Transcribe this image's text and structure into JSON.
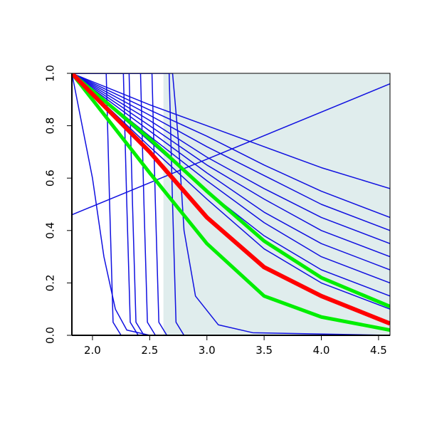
{
  "chart_data": {
    "type": "line",
    "xlim": [
      1.82,
      4.6
    ],
    "ylim": [
      0,
      1
    ],
    "xticks": [
      {
        "value": 2,
        "label": "2.0"
      },
      2.5,
      {
        "value": 3,
        "label": "3.0"
      },
      3.5,
      {
        "value": 4,
        "label": "4.0"
      },
      4.5
    ],
    "yticks": [
      {
        "value": 0,
        "label": "0.0"
      },
      0.2,
      0.4,
      0.6,
      0.8,
      {
        "value": 1,
        "label": "1.0"
      }
    ],
    "shaded_region": {
      "xlim": [
        2.62,
        4.6
      ],
      "color": "#e0eded"
    },
    "series": [
      {
        "color": "#1010e0",
        "line_width": 1.5,
        "x": [
          1.82,
          4.6
        ],
        "values": [
          0.46,
          0.96
        ]
      },
      {
        "color": "#1010e0",
        "line_width": 1.5,
        "x": [
          1.82,
          2.5,
          3.0,
          3.5,
          4.0,
          4.6
        ],
        "values": [
          1,
          0.88,
          0.8,
          0.72,
          0.64,
          0.56
        ]
      },
      {
        "color": "#1010e0",
        "line_width": 1.5,
        "x": [
          1.82,
          2.5,
          3.0,
          3.5,
          4.0,
          4.6
        ],
        "values": [
          1,
          0.86,
          0.76,
          0.65,
          0.55,
          0.45
        ]
      },
      {
        "color": "#1010e0",
        "line_width": 1.5,
        "x": [
          1.82,
          2.5,
          3.0,
          3.5,
          4.0,
          4.6
        ],
        "values": [
          1,
          0.84,
          0.72,
          0.61,
          0.5,
          0.4
        ]
      },
      {
        "color": "#1010e0",
        "line_width": 1.5,
        "x": [
          1.82,
          2.5,
          3.0,
          3.5,
          4.0,
          4.6
        ],
        "values": [
          1,
          0.82,
          0.68,
          0.56,
          0.45,
          0.35
        ]
      },
      {
        "color": "#1010e0",
        "line_width": 1.5,
        "x": [
          1.82,
          2.5,
          3.0,
          3.5,
          4.0,
          4.6
        ],
        "values": [
          1,
          0.8,
          0.65,
          0.52,
          0.4,
          0.3
        ]
      },
      {
        "color": "#1010e0",
        "line_width": 1.5,
        "x": [
          1.82,
          2.5,
          3.0,
          3.5,
          4.0,
          4.6
        ],
        "values": [
          1,
          0.78,
          0.62,
          0.47,
          0.35,
          0.25
        ]
      },
      {
        "color": "#1010e0",
        "line_width": 1.5,
        "x": [
          1.82,
          2.5,
          3.0,
          3.5,
          4.0,
          4.6
        ],
        "values": [
          1,
          0.76,
          0.59,
          0.43,
          0.3,
          0.2
        ]
      },
      {
        "color": "#1010e0",
        "line_width": 1.5,
        "x": [
          1.82,
          2.5,
          3.0,
          3.5,
          4.0,
          4.6
        ],
        "values": [
          1,
          0.74,
          0.55,
          0.38,
          0.25,
          0.15
        ]
      },
      {
        "color": "#1010e0",
        "line_width": 1.5,
        "x": [
          1.82,
          2.5,
          3.0,
          3.5,
          4.0,
          4.6
        ],
        "values": [
          1,
          0.72,
          0.52,
          0.33,
          0.2,
          0.1
        ]
      },
      {
        "color": "#1010e0",
        "line_width": 1.5,
        "x": [
          1.82,
          2.0,
          2.1,
          2.2,
          2.3,
          2.5
        ],
        "values": [
          1,
          0.6,
          0.3,
          0.1,
          0.02,
          0
        ]
      },
      {
        "color": "#1010e0",
        "line_width": 1.5,
        "x": [
          1.82,
          2.12,
          2.15,
          2.18,
          2.25,
          4.6
        ],
        "values": [
          1,
          1,
          0.5,
          0.05,
          0,
          0
        ]
      },
      {
        "color": "#1010e0",
        "line_width": 1.5,
        "x": [
          1.82,
          2.27,
          2.3,
          2.33,
          2.4,
          4.6
        ],
        "values": [
          1,
          1,
          0.5,
          0.05,
          0,
          0
        ]
      },
      {
        "color": "#1010e0",
        "line_width": 1.5,
        "x": [
          1.82,
          2.32,
          2.35,
          2.38,
          2.45,
          4.6
        ],
        "values": [
          1,
          1,
          0.5,
          0.05,
          0,
          0
        ]
      },
      {
        "color": "#1010e0",
        "line_width": 1.5,
        "x": [
          1.82,
          2.42,
          2.45,
          2.48,
          2.55,
          4.6
        ],
        "values": [
          1,
          1,
          0.5,
          0.05,
          0,
          0
        ]
      },
      {
        "color": "#1010e0",
        "line_width": 1.5,
        "x": [
          1.82,
          2.52,
          2.55,
          2.58,
          2.65,
          4.6
        ],
        "values": [
          1,
          1,
          0.5,
          0.05,
          0,
          0
        ]
      },
      {
        "color": "#1010e0",
        "line_width": 1.5,
        "x": [
          1.82,
          2.67,
          2.7,
          2.73,
          2.8,
          4.6
        ],
        "values": [
          1,
          1,
          0.5,
          0.05,
          0,
          0
        ]
      },
      {
        "color": "#1010e0",
        "line_width": 1.5,
        "x": [
          1.82,
          2.7,
          2.75,
          2.8,
          2.9,
          3.1,
          3.4,
          4.6
        ],
        "values": [
          1,
          1,
          0.75,
          0.4,
          0.15,
          0.04,
          0.01,
          0
        ]
      },
      {
        "color": "#00ee00",
        "line_width": 5,
        "x": [
          1.82,
          2.5,
          3.0,
          3.5,
          4.0,
          4.6
        ],
        "values": [
          1,
          0.75,
          0.55,
          0.36,
          0.22,
          0.11
        ]
      },
      {
        "color": "#00ee00",
        "line_width": 5,
        "x": [
          1.82,
          2.5,
          3.0,
          3.5,
          4.0,
          4.6
        ],
        "values": [
          1,
          0.62,
          0.35,
          0.15,
          0.07,
          0.02
        ]
      },
      {
        "color": "#ff0000",
        "line_width": 6,
        "x": [
          1.82,
          2.5,
          3.0,
          3.5,
          4.0,
          4.6
        ],
        "values": [
          1,
          0.7,
          0.45,
          0.26,
          0.15,
          0.045
        ]
      }
    ]
  }
}
